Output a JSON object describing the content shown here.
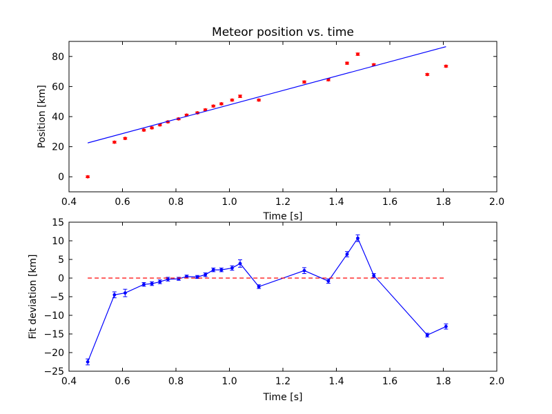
{
  "chart_data": [
    {
      "type": "scatter",
      "title": "Meteor position vs. time",
      "xlabel": "Time [s]",
      "ylabel": "Position [km]",
      "xlim": [
        0.4,
        2.0
      ],
      "ylim": [
        -10,
        90
      ],
      "xticks": [
        "0.4",
        "0.6",
        "0.8",
        "1.0",
        "1.2",
        "1.4",
        "1.6",
        "1.8",
        "2.0"
      ],
      "yticks": [
        "0",
        "20",
        "40",
        "60",
        "80"
      ],
      "grid": false,
      "series": [
        {
          "kind": "errorbar-points",
          "color": "#ff0000",
          "x": [
            0.47,
            0.57,
            0.61,
            0.68,
            0.71,
            0.74,
            0.77,
            0.81,
            0.84,
            0.88,
            0.91,
            0.94,
            0.97,
            1.01,
            1.04,
            1.11,
            1.28,
            1.37,
            1.44,
            1.48,
            1.54,
            1.74,
            1.81
          ],
          "y": [
            0,
            23,
            25.5,
            31,
            32.5,
            34.5,
            36.5,
            38.5,
            41,
            42.5,
            44.5,
            47,
            48.5,
            51,
            53.5,
            51,
            63,
            64.5,
            75.5,
            81.5,
            74.5,
            68,
            73.5
          ],
          "err": [
            0.6,
            0.6,
            0.6,
            0.6,
            0.6,
            0.6,
            0.6,
            0.6,
            0.6,
            0.6,
            0.6,
            0.6,
            0.6,
            0.6,
            0.8,
            0.6,
            0.7,
            0.7,
            0.7,
            0.8,
            0.6,
            0.6,
            0.6
          ]
        },
        {
          "kind": "line",
          "color": "#0000ff",
          "x": [
            0.47,
            1.81
          ],
          "y": [
            22.5,
            86.5
          ]
        }
      ]
    },
    {
      "type": "line",
      "title": "",
      "xlabel": "Time [s]",
      "ylabel": "Fit deviation [km]",
      "xlim": [
        0.4,
        2.0
      ],
      "ylim": [
        -25,
        15
      ],
      "xticks": [
        "0.4",
        "0.6",
        "0.8",
        "1.0",
        "1.2",
        "1.4",
        "1.6",
        "1.8",
        "2.0"
      ],
      "yticks": [
        "−25",
        "−20",
        "−15",
        "−10",
        "−5",
        "0",
        "5",
        "10",
        "15"
      ],
      "grid": false,
      "series": [
        {
          "kind": "errorbar-line",
          "color": "#0000ff",
          "x": [
            0.47,
            0.57,
            0.61,
            0.68,
            0.71,
            0.74,
            0.77,
            0.81,
            0.84,
            0.88,
            0.91,
            0.94,
            0.97,
            1.01,
            1.04,
            1.11,
            1.28,
            1.37,
            1.44,
            1.48,
            1.54,
            1.74,
            1.81
          ],
          "y": [
            -22.5,
            -4.5,
            -4.0,
            -1.7,
            -1.5,
            -1.0,
            -0.3,
            -0.2,
            0.4,
            0.3,
            0.9,
            2.2,
            2.2,
            2.7,
            3.9,
            -2.3,
            2.0,
            -0.8,
            6.4,
            10.7,
            0.7,
            -15.3,
            -13.0
          ]
        },
        {
          "kind": "dashed-line",
          "color": "#ff0000",
          "x": [
            0.47,
            1.81
          ],
          "y": [
            0,
            0
          ]
        }
      ],
      "err": [
        0.8,
        0.8,
        1.0,
        0.5,
        0.5,
        0.5,
        0.5,
        0.4,
        0.4,
        0.4,
        0.5,
        0.5,
        0.5,
        0.6,
        1.0,
        0.5,
        0.8,
        0.6,
        0.7,
        0.9,
        0.5,
        0.5,
        0.7
      ]
    }
  ]
}
